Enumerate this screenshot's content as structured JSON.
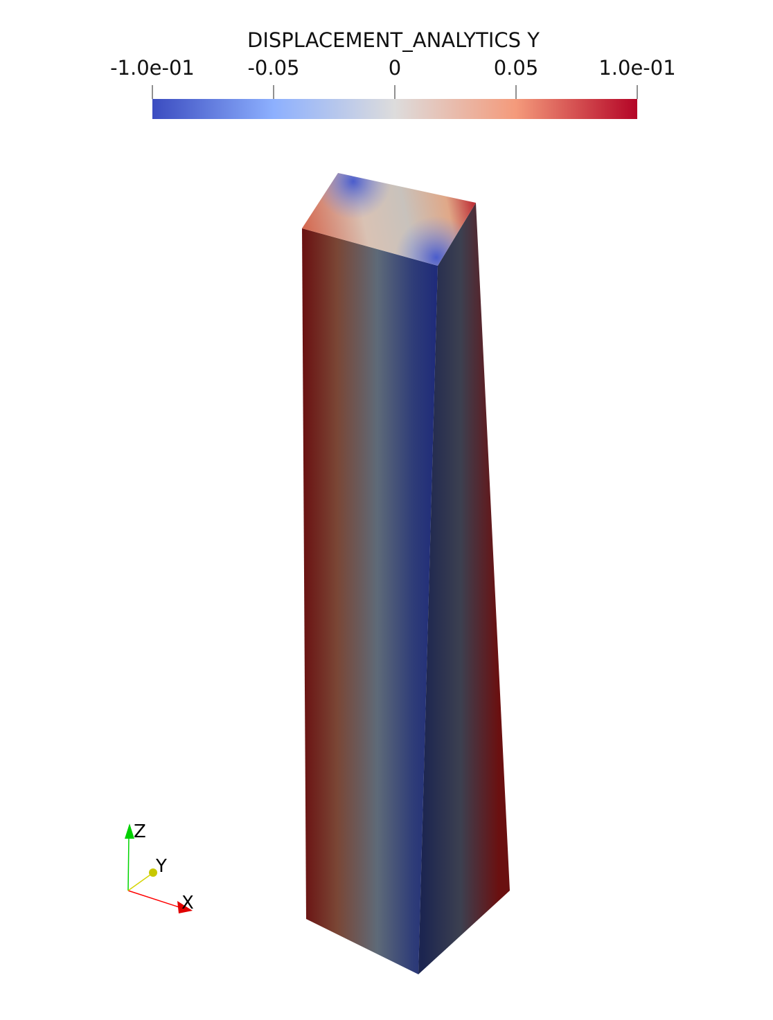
{
  "colorbar": {
    "title": "DISPLACEMENT_ANALYTICS Y",
    "ticks": [
      {
        "label": "-1.0e-01",
        "value": -0.1
      },
      {
        "label": "-0.05",
        "value": -0.05
      },
      {
        "label": "0",
        "value": 0
      },
      {
        "label": "0.05",
        "value": 0.05
      },
      {
        "label": "1.0e-01",
        "value": 0.1
      }
    ],
    "range": [
      -0.1,
      0.1
    ],
    "colors": {
      "low": "#3b4cc0",
      "mid": "#dddddd",
      "high": "#b40426"
    }
  },
  "orientation_axes": {
    "x": {
      "label": "X",
      "color": "#ff0000"
    },
    "y": {
      "label": "Y",
      "color": "#d4d400"
    },
    "z": {
      "label": "Z",
      "color": "#00d400"
    }
  }
}
